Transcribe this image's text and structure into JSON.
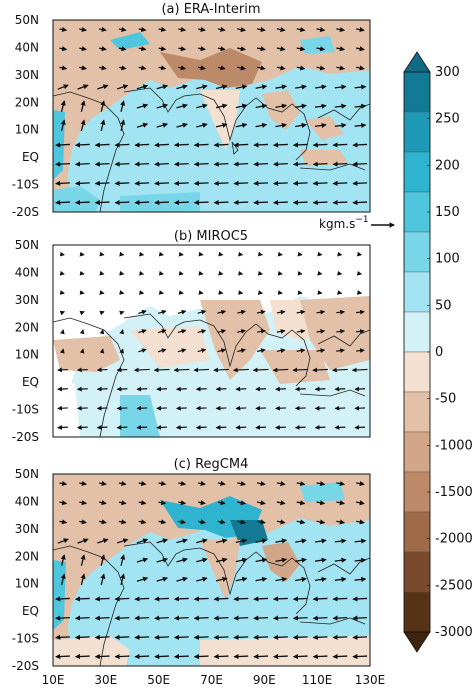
{
  "panels": [
    {
      "id": "a",
      "title": "(a) ERA-Interim"
    },
    {
      "id": "b",
      "title": "(b) MIROC5"
    },
    {
      "id": "c",
      "title": "(c) RegCM4"
    }
  ],
  "lat_ticks": [
    "50N",
    "40N",
    "30N",
    "20N",
    "10N",
    "EQ",
    "-10S",
    "-20S"
  ],
  "lon_ticks": [
    "10E",
    "30E",
    "50E",
    "70E",
    "90E",
    "110E",
    "130E"
  ],
  "vector_reference": {
    "label": "kgm.s",
    "exponent": "−1"
  },
  "colorbar": {
    "labels": [
      "300",
      "250",
      "200",
      "150",
      "100",
      "50",
      "0",
      "-50",
      "-1000",
      "-1500",
      "-2000",
      "-2500",
      "-3000"
    ],
    "colors": [
      "#127a94",
      "#1f9ab6",
      "#2fb4cf",
      "#4ec6de",
      "#78d6e9",
      "#a3e4f2",
      "#d3f2f8",
      "#f3e0d0",
      "#e2c1a8",
      "#d2a689",
      "#bd8a69",
      "#9f6a48",
      "#7b4a2c",
      "#563217"
    ],
    "over_color": "#0f6b85",
    "under_color": "#3f2410"
  }
}
